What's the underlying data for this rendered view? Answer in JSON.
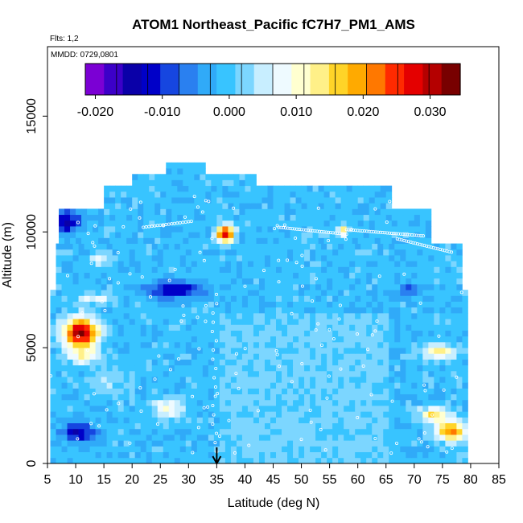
{
  "chart_data": {
    "type": "heatmap",
    "title": "ATOM1 Northeast_Pacific fC7H7_PM1_AMS",
    "flights_label": "Flts: 1,2",
    "dates_label": "MMDD: 0729,0801",
    "xlabel": "Latitude (deg N)",
    "ylabel": "Altitude (m)",
    "xlim": [
      5,
      85
    ],
    "ylim": [
      0,
      18000
    ],
    "x_ticks": [
      "5",
      "10",
      "15",
      "20",
      "25",
      "30",
      "35",
      "40",
      "45",
      "50",
      "55",
      "60",
      "65",
      "70",
      "75",
      "80",
      "85"
    ],
    "y_ticks": [
      "0",
      "5000",
      "10000",
      "15000"
    ],
    "colorbar": {
      "ticks": [
        "-0.020",
        "-0.010",
        "0.000",
        "0.010",
        "0.020",
        "0.030"
      ],
      "range": [
        -0.0215,
        0.0345
      ],
      "colors": [
        "#7b00d4",
        "#3c00c8",
        "#0a00a8",
        "#0000c8",
        "#1646e0",
        "#2a80f0",
        "#30aaf8",
        "#38c4ff",
        "#7cd6ff",
        "#c8eeff",
        "#eefaff",
        "#ffffd0",
        "#fff088",
        "#ffd428",
        "#ffaa00",
        "#ff7800",
        "#ff2a00",
        "#e40000",
        "#b40000",
        "#780000"
      ]
    },
    "marker_latitude": 35,
    "grid": false
  },
  "colors": {
    "background": "#ffffff",
    "base_fill": "#b0d8ff",
    "track": "#ffffff"
  }
}
